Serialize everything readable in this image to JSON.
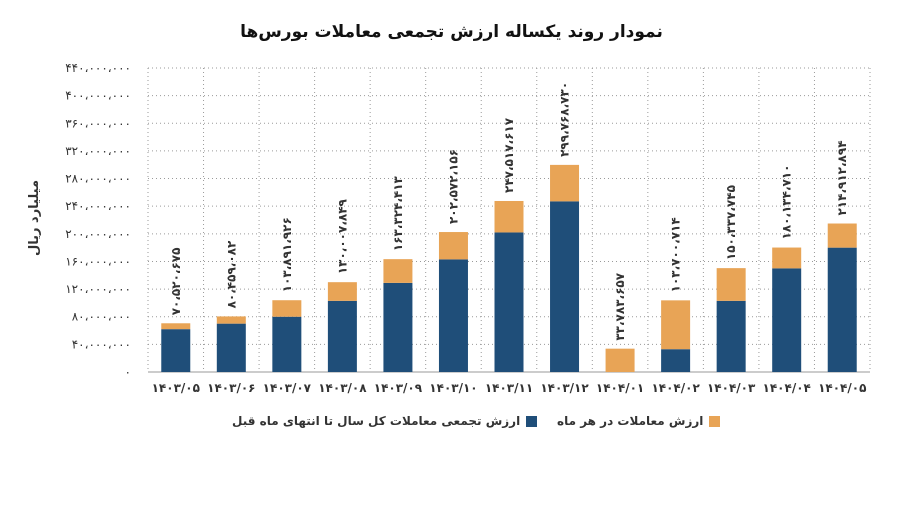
{
  "chart_data": {
    "type": "bar",
    "stacked": true,
    "title": "نمودار روند یکساله ارزش تجمعی معاملات بورس‌ها",
    "ylabel": "میلیارد ریال",
    "ylim": [
      0,
      440000000
    ],
    "y_ticks": [
      "۰",
      "۴۰،۰۰۰،۰۰۰",
      "۸۰،۰۰۰،۰۰۰",
      "۱۲۰،۰۰۰،۰۰۰",
      "۱۶۰،۰۰۰،۰۰۰",
      "۲۰۰،۰۰۰،۰۰۰",
      "۲۴۰،۰۰۰،۰۰۰",
      "۲۸۰،۰۰۰،۰۰۰",
      "۳۲۰،۰۰۰،۰۰۰",
      "۳۶۰،۰۰۰،۰۰۰",
      "۴۰۰،۰۰۰،۰۰۰",
      "۴۴۰،۰۰۰،۰۰۰"
    ],
    "y_tick_values": [
      0,
      40000000,
      80000000,
      120000000,
      160000000,
      200000000,
      240000000,
      280000000,
      320000000,
      360000000,
      400000000,
      440000000
    ],
    "grid": true,
    "legend_position": "bottom",
    "categories": [
      "۱۴۰۳/۰۵",
      "۱۴۰۳/۰۶",
      "۱۴۰۳/۰۷",
      "۱۴۰۳/۰۸",
      "۱۴۰۳/۰۹",
      "۱۴۰۳/۱۰",
      "۱۴۰۳/۱۱",
      "۱۴۰۳/۱۲",
      "۱۴۰۴/۰۱",
      "۱۴۰۴/۰۲",
      "۱۴۰۴/۰۳",
      "۱۴۰۴/۰۴",
      "۱۴۰۴/۰۵"
    ],
    "series": [
      {
        "name": "ارزش تجمعی معاملات کل سال تا انتهای ماه قبل",
        "color": "#1f4e79",
        "values": [
          62000000,
          70000000,
          80000000,
          103000000,
          129000000,
          163000000,
          202000000,
          247000000,
          0,
          33000000,
          103000000,
          150000000,
          180000000
        ]
      },
      {
        "name": "ارزش معاملات در هر ماه",
        "color": "#e8a456",
        "values": [
          8520675,
          10459082,
          23891926,
          27007849,
          34324413,
          39572156,
          45517617,
          52768730,
          33783657,
          70700714,
          47337745,
          30134710,
          34912894
        ]
      }
    ],
    "totals": [
      70520675,
      80459082,
      103891926,
      130007849,
      163324413,
      202572156,
      247517617,
      299768730,
      33783657,
      103700714,
      150337745,
      180134710,
      214912894
    ],
    "total_labels": [
      "۷۰،۵۲۰،۶۷۵",
      "۸۰،۴۵۹،۰۸۲",
      "۱۰۳،۸۹۱،۹۲۶",
      "۱۳۰،۰۰۷،۸۴۹",
      "۱۶۳،۳۲۴،۴۱۳",
      "۲۰۲،۵۷۲،۱۵۶",
      "۲۴۷،۵۱۷،۶۱۷",
      "۲۹۹،۷۶۸،۷۳۰",
      "۳۳،۷۸۳،۶۵۷",
      "۱۰۳،۷۰۰،۷۱۴",
      "۱۵۰،۳۳۷،۷۴۵",
      "۱۸۰،۱۳۴،۷۱۰",
      "۲۱۴،۹۱۲،۸۹۴"
    ]
  }
}
